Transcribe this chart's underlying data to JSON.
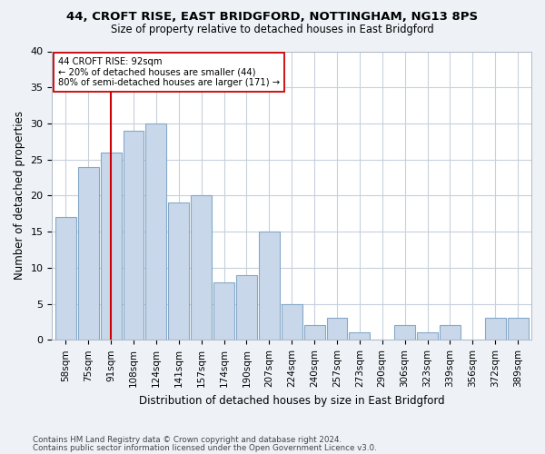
{
  "title1": "44, CROFT RISE, EAST BRIDGFORD, NOTTINGHAM, NG13 8PS",
  "title2": "Size of property relative to detached houses in East Bridgford",
  "xlabel": "Distribution of detached houses by size in East Bridgford",
  "ylabel": "Number of detached properties",
  "categories": [
    "58sqm",
    "75sqm",
    "91sqm",
    "108sqm",
    "124sqm",
    "141sqm",
    "157sqm",
    "174sqm",
    "190sqm",
    "207sqm",
    "224sqm",
    "240sqm",
    "257sqm",
    "273sqm",
    "290sqm",
    "306sqm",
    "323sqm",
    "339sqm",
    "356sqm",
    "372sqm",
    "389sqm"
  ],
  "values": [
    17,
    24,
    26,
    29,
    30,
    19,
    20,
    8,
    9,
    15,
    5,
    2,
    3,
    1,
    0,
    2,
    1,
    2,
    0,
    3,
    3
  ],
  "bar_color": "#c8d8ea",
  "bar_edge_color": "#85a8c8",
  "vline_x": 2,
  "vline_color": "#cc0000",
  "annotation_line1": "44 CROFT RISE: 92sqm",
  "annotation_line2": "← 20% of detached houses are smaller (44)",
  "annotation_line3": "80% of semi-detached houses are larger (171) →",
  "annotation_box_color": "#ffffff",
  "annotation_box_edge": "#cc0000",
  "ylim": [
    0,
    40
  ],
  "yticks": [
    0,
    5,
    10,
    15,
    20,
    25,
    30,
    35,
    40
  ],
  "footer1": "Contains HM Land Registry data © Crown copyright and database right 2024.",
  "footer2": "Contains public sector information licensed under the Open Government Licence v3.0.",
  "bg_color": "#eef2f7",
  "plot_bg_color": "#ffffff",
  "grid_color": "#c8d0dc"
}
